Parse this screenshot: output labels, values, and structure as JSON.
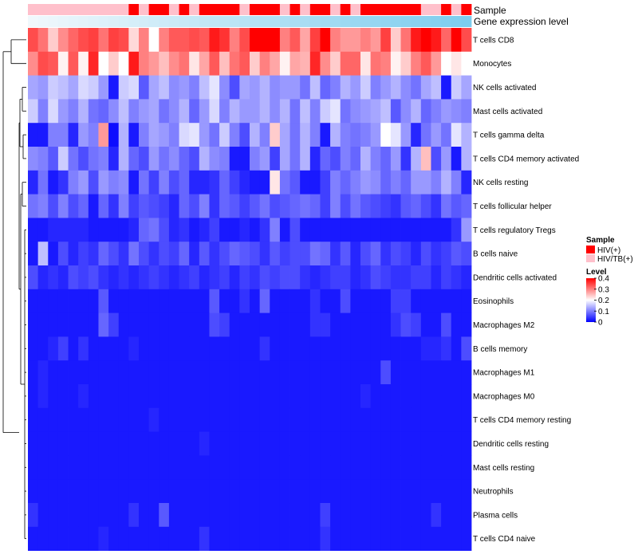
{
  "chart_data": {
    "type": "heatmap",
    "columns": 44,
    "annotation_labels": [
      "Sample",
      "Gene expression level"
    ],
    "sample_groups": [
      "HIV(+)",
      "HIV/TB(+)"
    ],
    "sample_colors": {
      "HIV(+)": "#ff0000",
      "HIV/TB(+)": "#ffc0cb"
    },
    "sample_annotation": [
      "HIV/TB(+)",
      "HIV/TB(+)",
      "HIV/TB(+)",
      "HIV/TB(+)",
      "HIV/TB(+)",
      "HIV/TB(+)",
      "HIV/TB(+)",
      "HIV/TB(+)",
      "HIV/TB(+)",
      "HIV/TB(+)",
      "HIV(+)",
      "HIV/TB(+)",
      "HIV(+)",
      "HIV(+)",
      "HIV/TB(+)",
      "HIV(+)",
      "HIV/TB(+)",
      "HIV(+)",
      "HIV(+)",
      "HIV(+)",
      "HIV(+)",
      "HIV/TB(+)",
      "HIV(+)",
      "HIV(+)",
      "HIV(+)",
      "HIV/TB(+)",
      "HIV(+)",
      "HIV/TB(+)",
      "HIV(+)",
      "HIV(+)",
      "HIV/TB(+)",
      "HIV(+)",
      "HIV/TB(+)",
      "HIV(+)",
      "HIV(+)",
      "HIV(+)",
      "HIV(+)",
      "HIV(+)",
      "HIV(+)",
      "HIV/TB(+)",
      "HIV/TB(+)",
      "HIV(+)",
      "HIV/TB(+)",
      "HIV(+)"
    ],
    "expression_annotation_color": "#7dcdee",
    "rows": [
      "T cells CD8",
      "Monocytes",
      "NK cells activated",
      "Mast cells activated",
      "T cells gamma delta",
      "T cells CD4 memory activated",
      "NK cells resting",
      "T cells follicular helper",
      "T cells regulatory  Tregs",
      "B cells naive",
      "Dendritic cells activated",
      "Eosinophils",
      "Macrophages M2",
      "B cells memory",
      "Macrophages M1",
      "Macrophages M0",
      "T cells CD4 memory resting",
      "Dendritic cells resting",
      "Mast cells resting",
      "Neutrophils",
      "Plasma cells",
      "T cells CD4 naive"
    ],
    "values": [
      [
        0.34,
        0.31,
        0.24,
        0.29,
        0.32,
        0.34,
        0.35,
        0.31,
        0.35,
        0.34,
        0.23,
        0.3,
        0.2,
        0.3,
        0.33,
        0.33,
        0.34,
        0.33,
        0.38,
        0.36,
        0.3,
        0.34,
        0.4,
        0.4,
        0.4,
        0.3,
        0.33,
        0.27,
        0.35,
        0.4,
        0.3,
        0.28,
        0.28,
        0.3,
        0.28,
        0.35,
        0.24,
        0.31,
        0.38,
        0.4,
        0.38,
        0.32,
        0.4,
        0.34
      ],
      [
        0.29,
        0.34,
        0.33,
        0.21,
        0.33,
        0.21,
        0.37,
        0.2,
        0.24,
        0.2,
        0.38,
        0.3,
        0.28,
        0.25,
        0.29,
        0.31,
        0.22,
        0.27,
        0.33,
        0.25,
        0.31,
        0.33,
        0.24,
        0.3,
        0.27,
        0.21,
        0.27,
        0.26,
        0.37,
        0.29,
        0.24,
        0.32,
        0.32,
        0.22,
        0.31,
        0.3,
        0.21,
        0.24,
        0.3,
        0.33,
        0.28,
        0.2,
        0.22,
        0.2
      ],
      [
        0.13,
        0.12,
        0.16,
        0.15,
        0.13,
        0.17,
        0.16,
        0.12,
        0.02,
        0.16,
        0.17,
        0.07,
        0.13,
        0.15,
        0.11,
        0.12,
        0.1,
        0.15,
        0.18,
        0.11,
        0.06,
        0.13,
        0.12,
        0.14,
        0.11,
        0.12,
        0.12,
        0.09,
        0.15,
        0.08,
        0.1,
        0.14,
        0.12,
        0.16,
        0.1,
        0.12,
        0.14,
        0.11,
        0.09,
        0.13,
        0.15,
        0.02,
        0.16,
        0.13
      ],
      [
        0.16,
        0.1,
        0.17,
        0.12,
        0.1,
        0.14,
        0.09,
        0.08,
        0.11,
        0.15,
        0.1,
        0.12,
        0.13,
        0.09,
        0.11,
        0.14,
        0.08,
        0.12,
        0.17,
        0.1,
        0.14,
        0.12,
        0.12,
        0.14,
        0.11,
        0.14,
        0.09,
        0.15,
        0.1,
        0.16,
        0.18,
        0.09,
        0.11,
        0.12,
        0.13,
        0.15,
        0.07,
        0.11,
        0.14,
        0.08,
        0.1,
        0.12,
        0.11,
        0.1
      ],
      [
        0.02,
        0.02,
        0.1,
        0.1,
        0.03,
        0.12,
        0.1,
        0.28,
        0.01,
        0.14,
        0.02,
        0.1,
        0.13,
        0.12,
        0.1,
        0.17,
        0.18,
        0.12,
        0.09,
        0.16,
        0.1,
        0.06,
        0.14,
        0.1,
        0.24,
        0.13,
        0.09,
        0.14,
        0.1,
        0.02,
        0.14,
        0.1,
        0.09,
        0.1,
        0.12,
        0.2,
        0.18,
        0.12,
        0.03,
        0.09,
        0.12,
        0.09,
        0.18,
        0.14
      ],
      [
        0.11,
        0.1,
        0.07,
        0.16,
        0.09,
        0.06,
        0.09,
        0.1,
        0.03,
        0.14,
        0.08,
        0.06,
        0.12,
        0.09,
        0.11,
        0.08,
        0.06,
        0.14,
        0.11,
        0.1,
        0.02,
        0.02,
        0.1,
        0.12,
        0.05,
        0.13,
        0.09,
        0.14,
        0.03,
        0.08,
        0.06,
        0.1,
        0.08,
        0.14,
        0.1,
        0.08,
        0.12,
        0.04,
        0.14,
        0.25,
        0.06,
        0.12,
        0.02,
        0.14
      ],
      [
        0.03,
        0.09,
        0.02,
        0.04,
        0.1,
        0.12,
        0.06,
        0.12,
        0.1,
        0.11,
        0.02,
        0.09,
        0.05,
        0.1,
        0.06,
        0.08,
        0.03,
        0.03,
        0.04,
        0.08,
        0.05,
        0.03,
        0.02,
        0.02,
        0.22,
        0.09,
        0.07,
        0.02,
        0.02,
        0.05,
        0.1,
        0.08,
        0.1,
        0.12,
        0.11,
        0.08,
        0.1,
        0.08,
        0.12,
        0.12,
        0.1,
        0.14,
        0.1,
        0.03
      ],
      [
        0.09,
        0.1,
        0.06,
        0.1,
        0.06,
        0.08,
        0.02,
        0.08,
        0.04,
        0.1,
        0.05,
        0.07,
        0.06,
        0.05,
        0.03,
        0.08,
        0.06,
        0.1,
        0.04,
        0.08,
        0.07,
        0.05,
        0.07,
        0.09,
        0.06,
        0.07,
        0.08,
        0.09,
        0.08,
        0.05,
        0.1,
        0.06,
        0.09,
        0.07,
        0.06,
        0.05,
        0.04,
        0.07,
        0.08,
        0.06,
        0.04,
        0.09,
        0.07,
        0.08
      ],
      [
        0.02,
        0.02,
        0.03,
        0.03,
        0.03,
        0.03,
        0.02,
        0.02,
        0.02,
        0.02,
        0.03,
        0.08,
        0.09,
        0.06,
        0.03,
        0.04,
        0.02,
        0.03,
        0.05,
        0.02,
        0.02,
        0.03,
        0.02,
        0.04,
        0.1,
        0.02,
        0.06,
        0.02,
        0.02,
        0.02,
        0.02,
        0.02,
        0.02,
        0.02,
        0.02,
        0.02,
        0.02,
        0.02,
        0.02,
        0.02,
        0.02,
        0.02,
        0.04,
        0.12
      ],
      [
        0.02,
        0.15,
        0.02,
        0.06,
        0.03,
        0.05,
        0.04,
        0.08,
        0.06,
        0.04,
        0.09,
        0.06,
        0.04,
        0.06,
        0.05,
        0.08,
        0.03,
        0.07,
        0.04,
        0.06,
        0.08,
        0.07,
        0.06,
        0.04,
        0.07,
        0.05,
        0.06,
        0.06,
        0.09,
        0.08,
        0.04,
        0.07,
        0.03,
        0.06,
        0.08,
        0.04,
        0.06,
        0.05,
        0.03,
        0.06,
        0.04,
        0.05,
        0.07,
        0.06
      ],
      [
        0.06,
        0.03,
        0.04,
        0.03,
        0.06,
        0.05,
        0.06,
        0.04,
        0.03,
        0.04,
        0.03,
        0.04,
        0.05,
        0.04,
        0.03,
        0.04,
        0.05,
        0.03,
        0.04,
        0.05,
        0.03,
        0.05,
        0.04,
        0.06,
        0.05,
        0.06,
        0.06,
        0.04,
        0.03,
        0.04,
        0.05,
        0.05,
        0.03,
        0.04,
        0.06,
        0.05,
        0.04,
        0.04,
        0.05,
        0.05,
        0.03,
        0.05,
        0.04,
        0.03
      ],
      [
        0.02,
        0.02,
        0.02,
        0.02,
        0.02,
        0.02,
        0.02,
        0.07,
        0.02,
        0.02,
        0.02,
        0.02,
        0.02,
        0.02,
        0.02,
        0.02,
        0.02,
        0.02,
        0.07,
        0.02,
        0.02,
        0.04,
        0.02,
        0.08,
        0.02,
        0.02,
        0.02,
        0.02,
        0.04,
        0.02,
        0.02,
        0.06,
        0.02,
        0.02,
        0.02,
        0.02,
        0.05,
        0.05,
        0.02,
        0.02,
        0.02,
        0.02,
        0.02,
        0.02
      ],
      [
        0.02,
        0.02,
        0.02,
        0.02,
        0.02,
        0.02,
        0.02,
        0.08,
        0.05,
        0.02,
        0.02,
        0.02,
        0.02,
        0.02,
        0.02,
        0.02,
        0.02,
        0.02,
        0.06,
        0.05,
        0.02,
        0.02,
        0.02,
        0.02,
        0.02,
        0.02,
        0.02,
        0.02,
        0.04,
        0.04,
        0.02,
        0.02,
        0.02,
        0.02,
        0.02,
        0.02,
        0.04,
        0.06,
        0.05,
        0.02,
        0.02,
        0.06,
        0.02,
        0.02
      ],
      [
        0.02,
        0.02,
        0.03,
        0.05,
        0.02,
        0.04,
        0.02,
        0.02,
        0.02,
        0.02,
        0.03,
        0.02,
        0.02,
        0.02,
        0.02,
        0.02,
        0.02,
        0.02,
        0.02,
        0.02,
        0.02,
        0.02,
        0.02,
        0.04,
        0.02,
        0.02,
        0.02,
        0.02,
        0.02,
        0.02,
        0.02,
        0.02,
        0.02,
        0.02,
        0.02,
        0.02,
        0.02,
        0.02,
        0.02,
        0.03,
        0.03,
        0.04,
        0.02,
        0.06
      ],
      [
        0.02,
        0.03,
        0.02,
        0.02,
        0.02,
        0.02,
        0.02,
        0.02,
        0.02,
        0.02,
        0.02,
        0.02,
        0.02,
        0.02,
        0.02,
        0.02,
        0.02,
        0.02,
        0.02,
        0.02,
        0.02,
        0.02,
        0.02,
        0.02,
        0.02,
        0.02,
        0.02,
        0.02,
        0.02,
        0.02,
        0.02,
        0.02,
        0.02,
        0.02,
        0.02,
        0.06,
        0.02,
        0.02,
        0.02,
        0.02,
        0.02,
        0.02,
        0.02,
        0.02
      ],
      [
        0.02,
        0.03,
        0.02,
        0.02,
        0.02,
        0.03,
        0.02,
        0.02,
        0.02,
        0.02,
        0.02,
        0.02,
        0.02,
        0.02,
        0.02,
        0.02,
        0.02,
        0.02,
        0.02,
        0.02,
        0.02,
        0.02,
        0.02,
        0.02,
        0.02,
        0.02,
        0.02,
        0.02,
        0.02,
        0.02,
        0.02,
        0.02,
        0.02,
        0.03,
        0.02,
        0.02,
        0.02,
        0.02,
        0.02,
        0.02,
        0.02,
        0.02,
        0.02,
        0.02
      ],
      [
        0.02,
        0.02,
        0.02,
        0.02,
        0.02,
        0.02,
        0.02,
        0.02,
        0.02,
        0.02,
        0.02,
        0.02,
        0.03,
        0.02,
        0.02,
        0.02,
        0.02,
        0.02,
        0.02,
        0.02,
        0.02,
        0.02,
        0.02,
        0.02,
        0.02,
        0.02,
        0.02,
        0.02,
        0.02,
        0.02,
        0.02,
        0.02,
        0.02,
        0.02,
        0.02,
        0.02,
        0.02,
        0.02,
        0.02,
        0.02,
        0.02,
        0.02,
        0.02,
        0.02
      ],
      [
        0.02,
        0.02,
        0.02,
        0.02,
        0.02,
        0.02,
        0.02,
        0.02,
        0.02,
        0.02,
        0.02,
        0.02,
        0.02,
        0.02,
        0.02,
        0.02,
        0.02,
        0.03,
        0.02,
        0.02,
        0.02,
        0.02,
        0.02,
        0.02,
        0.02,
        0.02,
        0.02,
        0.02,
        0.02,
        0.02,
        0.02,
        0.02,
        0.02,
        0.02,
        0.02,
        0.02,
        0.02,
        0.02,
        0.02,
        0.02,
        0.02,
        0.02,
        0.02,
        0.02
      ],
      [
        0.02,
        0.02,
        0.02,
        0.02,
        0.02,
        0.02,
        0.02,
        0.02,
        0.02,
        0.02,
        0.02,
        0.02,
        0.02,
        0.02,
        0.02,
        0.02,
        0.02,
        0.02,
        0.02,
        0.02,
        0.02,
        0.02,
        0.02,
        0.02,
        0.02,
        0.02,
        0.02,
        0.02,
        0.02,
        0.02,
        0.02,
        0.02,
        0.02,
        0.02,
        0.02,
        0.02,
        0.02,
        0.02,
        0.02,
        0.02,
        0.02,
        0.02,
        0.02,
        0.02
      ],
      [
        0.02,
        0.02,
        0.02,
        0.02,
        0.02,
        0.02,
        0.02,
        0.02,
        0.02,
        0.02,
        0.02,
        0.02,
        0.02,
        0.02,
        0.02,
        0.02,
        0.02,
        0.02,
        0.02,
        0.02,
        0.02,
        0.02,
        0.02,
        0.02,
        0.02,
        0.02,
        0.02,
        0.02,
        0.02,
        0.02,
        0.02,
        0.02,
        0.02,
        0.02,
        0.02,
        0.02,
        0.02,
        0.02,
        0.02,
        0.02,
        0.02,
        0.02,
        0.02,
        0.02
      ],
      [
        0.04,
        0.02,
        0.02,
        0.02,
        0.02,
        0.02,
        0.02,
        0.02,
        0.02,
        0.02,
        0.04,
        0.02,
        0.02,
        0.07,
        0.02,
        0.02,
        0.02,
        0.02,
        0.02,
        0.02,
        0.02,
        0.02,
        0.02,
        0.02,
        0.02,
        0.02,
        0.02,
        0.02,
        0.02,
        0.05,
        0.02,
        0.02,
        0.02,
        0.02,
        0.02,
        0.02,
        0.02,
        0.02,
        0.02,
        0.02,
        0.04,
        0.02,
        0.02,
        0.02
      ],
      [
        0.02,
        0.02,
        0.02,
        0.02,
        0.02,
        0.02,
        0.02,
        0.03,
        0.02,
        0.02,
        0.02,
        0.02,
        0.02,
        0.02,
        0.02,
        0.02,
        0.02,
        0.04,
        0.02,
        0.02,
        0.02,
        0.02,
        0.02,
        0.02,
        0.02,
        0.02,
        0.02,
        0.02,
        0.02,
        0.04,
        0.02,
        0.02,
        0.02,
        0.02,
        0.02,
        0.02,
        0.02,
        0.02,
        0.02,
        0.02,
        0.02,
        0.02,
        0.02,
        0.02
      ]
    ],
    "color_scale": {
      "min": 0,
      "mid": 0.2,
      "max": 0.4,
      "low_color": "#0000ff",
      "mid_color": "#ffffff",
      "high_color": "#ff0000"
    },
    "legend": {
      "sample_title": "Sample",
      "sample_entries": [
        "HIV(+)",
        "HIV/TB(+)"
      ],
      "level_title": "Level",
      "level_ticks": [
        0.4,
        0.3,
        0.2,
        0.1,
        0
      ]
    }
  }
}
